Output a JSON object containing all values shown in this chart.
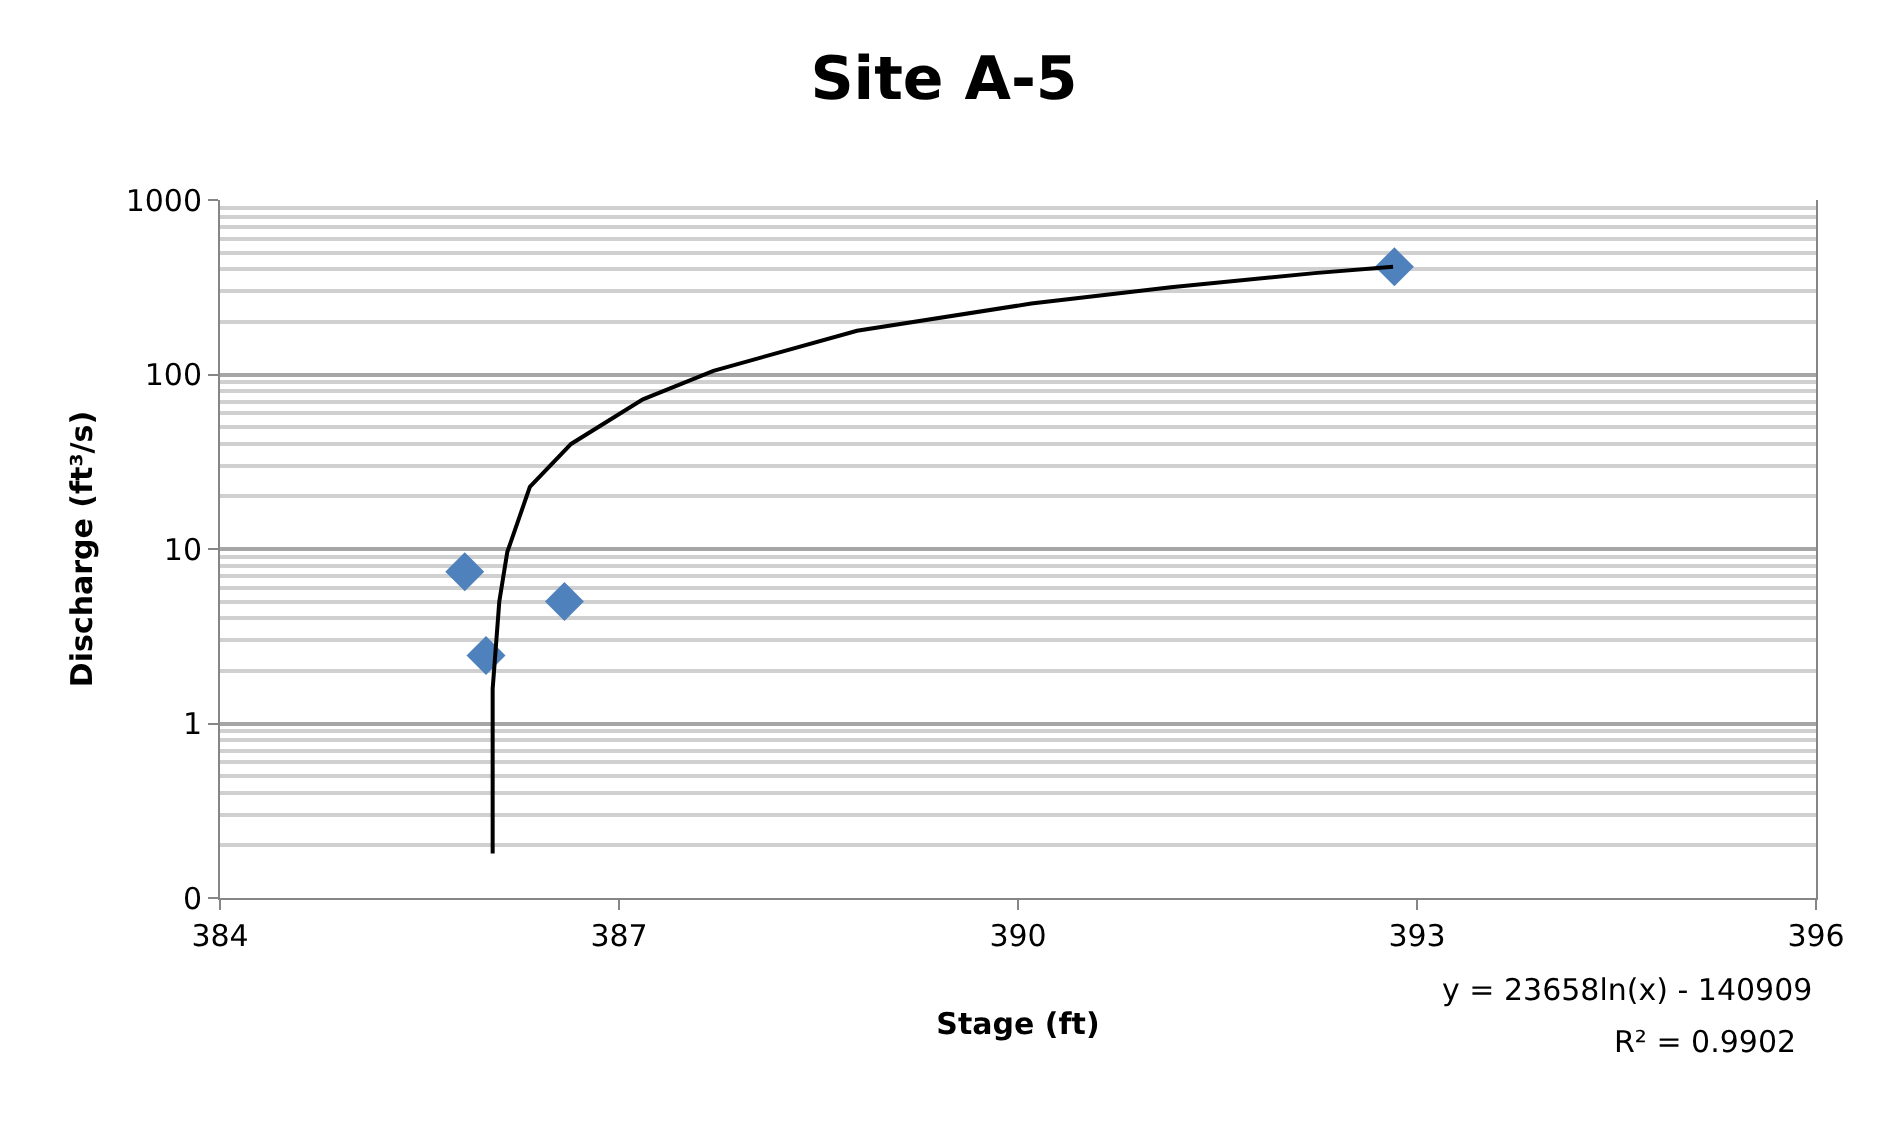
{
  "chart_data": {
    "type": "scatter",
    "title": "Site A-5",
    "xlabel": "Stage (ft)",
    "ylabel": "Discharge (ft³/s)",
    "series": [
      {
        "color": "#4f81bd",
        "marker": "diamond",
        "x": [
          385.84,
          386.0,
          386.59,
          392.83
        ],
        "values": [
          7.4,
          2.45,
          5.0,
          414
        ]
      },
      {
        "type": "line",
        "color": "#000000",
        "marker": "none",
        "line_style": "solid",
        "x": [
          386.05,
          386.05,
          386.1,
          386.16,
          386.33,
          386.64,
          387.18,
          387.71,
          388.79,
          390.1,
          391.15,
          392.23,
          392.82
        ],
        "values": [
          0.18,
          1.58,
          5.0,
          9.6,
          22.7,
          40,
          72,
          105,
          178,
          255,
          316,
          381,
          414
        ]
      }
    ],
    "log": "y",
    "xlim": [
      384,
      396
    ],
    "xticks": [
      384,
      387,
      390,
      393,
      396
    ],
    "ylim": [
      0.1,
      1000
    ],
    "yticks": [
      {
        "value": 0.1,
        "label": "0"
      },
      1,
      10,
      100,
      1000
    ],
    "grid": "y",
    "annotations": [
      "y = 23658ln(x) - 140909",
      "R² = 0.9902"
    ]
  }
}
